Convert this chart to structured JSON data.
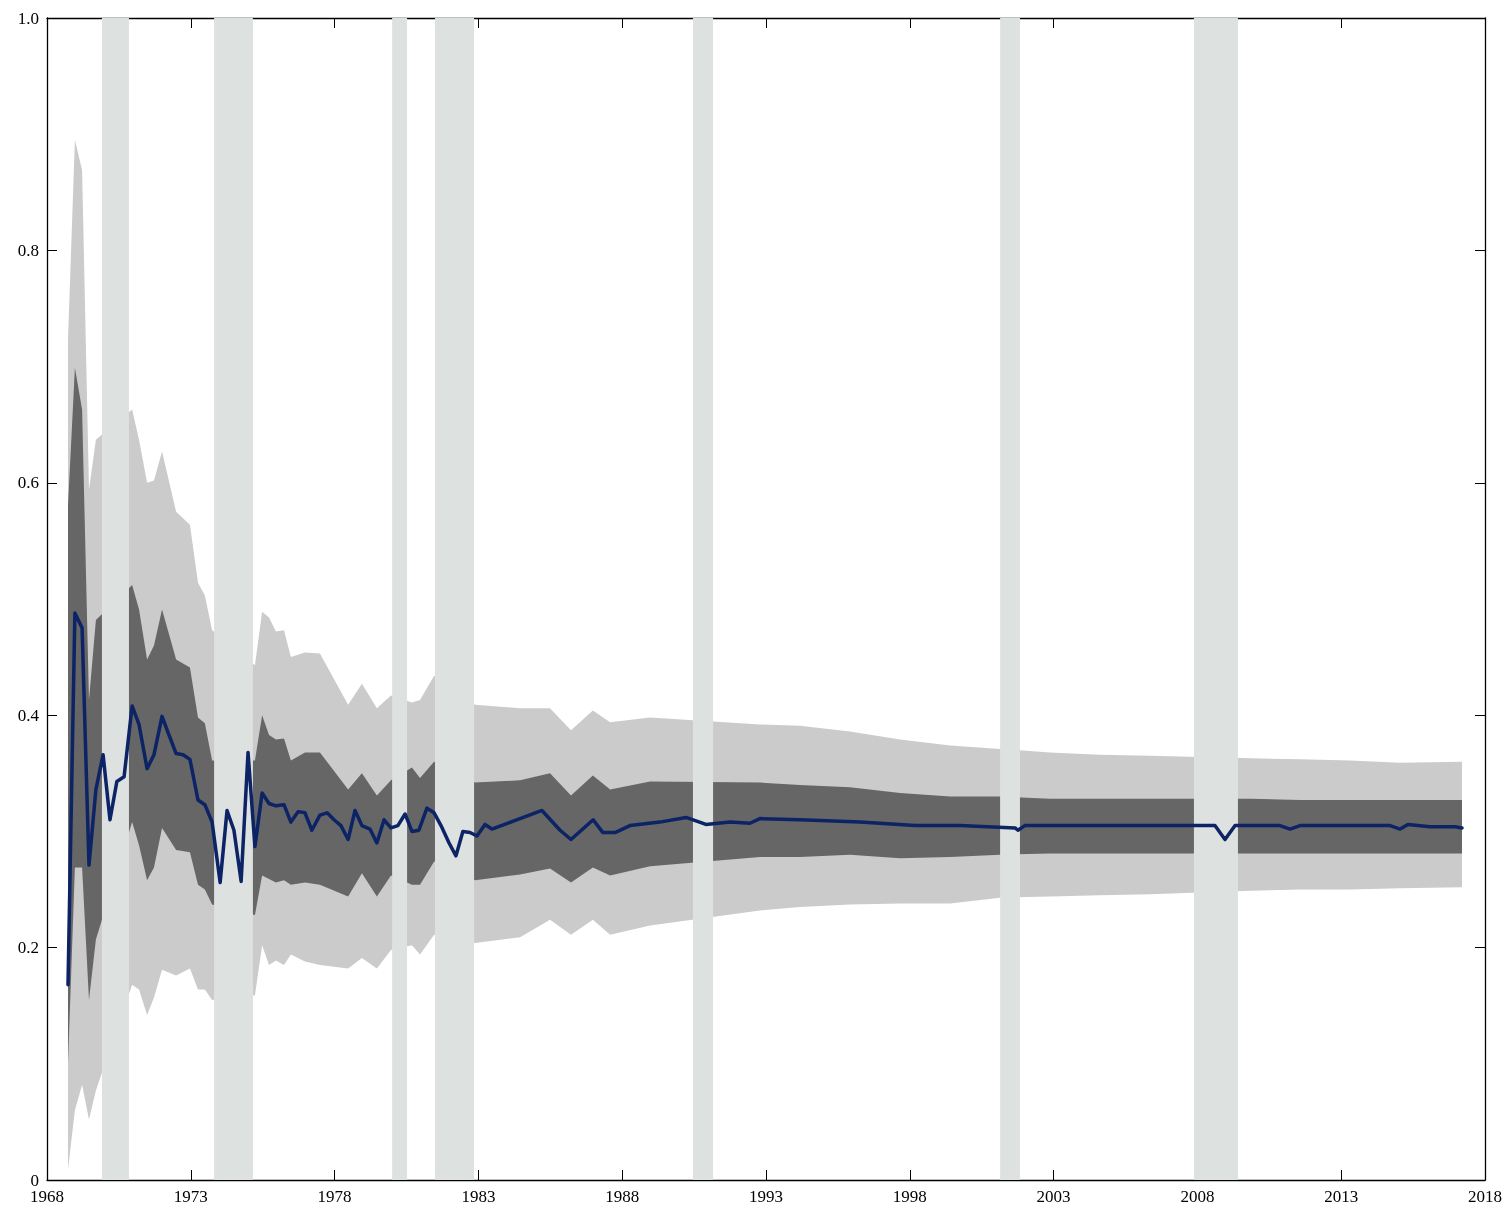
{
  "chart_data": {
    "type": "line",
    "xlim": [
      1968,
      2018
    ],
    "xticks": [
      1968,
      1973,
      1978,
      1983,
      1988,
      1993,
      1998,
      2003,
      2008,
      2013,
      2018
    ],
    "ylim": [
      0,
      1
    ],
    "yticks": [
      0,
      0.2,
      0.4,
      0.6,
      0.8,
      {
        "value": 1,
        "label": "1.0"
      }
    ],
    "grid": false,
    "marker": "none",
    "line_style": "solid",
    "bands": [
      {
        "axis": "x",
        "from": 1969.91,
        "to": 1970.85,
        "color": "#dde1e0"
      },
      {
        "axis": "x",
        "from": 1973.81,
        "to": 1975.16,
        "color": "#dde1e0"
      },
      {
        "axis": "x",
        "from": 1980.0,
        "to": 1980.52,
        "color": "#dde1e0"
      },
      {
        "axis": "x",
        "from": 1981.49,
        "to": 1982.85,
        "color": "#dde1e0"
      },
      {
        "axis": "x",
        "from": 1990.46,
        "to": 1991.16,
        "color": "#dde1e0"
      },
      {
        "axis": "x",
        "from": 2001.14,
        "to": 2001.83,
        "color": "#dde1e0"
      },
      {
        "axis": "x",
        "from": 2007.88,
        "to": 2009.41,
        "color": "#dde1e0"
      }
    ],
    "x": [
      1968.73,
      1968.97,
      1969.22,
      1969.46,
      1969.7,
      1969.95,
      1970.96,
      1971.2,
      1971.48,
      1971.72,
      1972.0,
      1972.49,
      1972.97,
      1973.25,
      1973.49,
      1973.74,
      1975.23,
      1975.48,
      1975.72,
      1975.96,
      1976.24,
      1976.48,
      1976.97,
      1977.49,
      1978.47,
      1978.95,
      1979.47,
      1979.96,
      1980.69,
      1980.97,
      1981.46,
      1982.88,
      1984.45,
      1985.49,
      1986.22,
      1986.98,
      1987.58,
      1988.97,
      1990.71,
      1992.79,
      1994.18,
      1995.92,
      1997.66,
      1999.4,
      2001.14,
      2002.87,
      2004.61,
      2006.35,
      2008.09,
      2009.83,
      2011.57,
      2013.31,
      2015.04,
      2017.2
    ],
    "series": [
      {
        "color": "#cbcbcb",
        "values": [
          null,
          null,
          null,
          null,
          null,
          null,
          null,
          null,
          null,
          null,
          null,
          null,
          null,
          null,
          null,
          null,
          null,
          null,
          null,
          null,
          null,
          null,
          null,
          null,
          null,
          null,
          null,
          null,
          null,
          null,
          null,
          null,
          null,
          null,
          null,
          null,
          null,
          null,
          null,
          null,
          null,
          null,
          null,
          null,
          null,
          null,
          null,
          null,
          null,
          null,
          null,
          null,
          null,
          null
        ],
        "lower": [
          0.009,
          0.06,
          0.082,
          0.052,
          0.077,
          null,
          0.168,
          0.164,
          0.142,
          0.157,
          0.181,
          0.176,
          0.182,
          0.164,
          0.164,
          0.155,
          0.159,
          0.202,
          0.185,
          0.189,
          0.185,
          0.194,
          0.188,
          0.185,
          0.182,
          0.191,
          0.182,
          0.198,
          0.202,
          0.194,
          0.211,
          0.204,
          0.209,
          0.224,
          0.211,
          0.224,
          0.211,
          0.219,
          null,
          0.232,
          0.235,
          0.237,
          0.238,
          0.238,
          0.243,
          0.244,
          0.245,
          0.246,
          null,
          0.249,
          0.25,
          0.25,
          0.251,
          0.252
        ],
        "upper": [
          0.723,
          0.895,
          0.869,
          0.594,
          0.637,
          null,
          0.663,
          0.637,
          0.6,
          0.602,
          0.627,
          0.575,
          0.564,
          0.514,
          0.503,
          0.473,
          0.443,
          0.489,
          0.484,
          0.472,
          0.473,
          0.45,
          0.454,
          0.453,
          0.409,
          0.427,
          0.406,
          0.417,
          0.411,
          0.413,
          0.434,
          0.409,
          0.406,
          0.406,
          0.387,
          0.404,
          0.394,
          0.398,
          null,
          0.392,
          0.391,
          0.386,
          0.379,
          0.374,
          0.371,
          0.368,
          0.366,
          0.365,
          null,
          0.363,
          0.362,
          0.361,
          0.359,
          0.36
        ]
      },
      {
        "color": "#666666",
        "values": [
          null,
          null,
          null,
          null,
          null,
          null,
          null,
          null,
          null,
          null,
          null,
          null,
          null,
          null,
          null,
          null,
          null,
          null,
          null,
          null,
          null,
          null,
          null,
          null,
          null,
          null,
          null,
          null,
          null,
          null,
          null,
          null,
          null,
          null,
          null,
          null,
          null,
          null,
          null,
          null,
          null,
          null,
          null,
          null,
          null,
          null,
          null,
          null,
          null,
          null,
          null,
          null,
          null,
          null
        ],
        "lower": [
          0.1,
          0.269,
          0.269,
          0.155,
          0.207,
          null,
          0.308,
          0.288,
          0.258,
          0.269,
          0.303,
          0.284,
          0.282,
          0.254,
          0.25,
          0.237,
          0.228,
          0.262,
          0.259,
          0.256,
          0.258,
          0.254,
          0.256,
          0.254,
          0.244,
          0.264,
          0.244,
          0.262,
          0.254,
          0.254,
          0.274,
          0.258,
          0.263,
          0.268,
          0.256,
          0.269,
          0.262,
          0.27,
          null,
          0.278,
          0.278,
          0.28,
          0.277,
          0.278,
          0.28,
          0.281,
          0.281,
          0.281,
          null,
          0.281,
          0.281,
          0.281,
          0.281,
          0.281
        ],
        "upper": [
          0.58,
          0.699,
          0.663,
          0.413,
          0.482,
          null,
          0.512,
          0.491,
          0.448,
          0.46,
          0.491,
          0.448,
          0.441,
          0.398,
          0.393,
          0.361,
          0.361,
          0.4,
          0.383,
          0.379,
          0.38,
          0.361,
          0.368,
          0.368,
          0.336,
          0.35,
          0.331,
          0.344,
          0.355,
          0.346,
          0.36,
          0.342,
          0.344,
          0.35,
          0.331,
          0.348,
          0.336,
          0.343,
          null,
          0.342,
          0.34,
          0.338,
          0.333,
          0.33,
          0.33,
          0.328,
          0.328,
          0.328,
          null,
          0.328,
          0.327,
          0.327,
          0.327,
          0.327
        ]
      },
      {
        "type": "line",
        "color": "#0c2366",
        "x": [
          1968.73,
          1968.97,
          1969.22,
          1969.46,
          1969.7,
          1969.95,
          1970.19,
          1970.43,
          1970.68,
          1970.96,
          1971.2,
          1971.48,
          1971.72,
          1972.0,
          1972.24,
          1972.49,
          1972.73,
          1972.97,
          1973.25,
          1973.49,
          1973.74,
          1974.02,
          1974.26,
          1974.5,
          1974.75,
          1974.99,
          1975.23,
          1975.48,
          1975.72,
          1975.96,
          1976.24,
          1976.48,
          1976.73,
          1976.97,
          1977.21,
          1977.49,
          1977.74,
          1977.98,
          1978.22,
          1978.47,
          1978.71,
          1978.95,
          1979.23,
          1979.47,
          1979.72,
          1979.96,
          1980.2,
          1980.45,
          1980.69,
          1980.93,
          1981.21,
          1981.46,
          1981.7,
          1981.98,
          1982.22,
          1982.46,
          1982.71,
          1982.95,
          1983.23,
          1983.47,
          1985.21,
          1985.84,
          1986.22,
          1986.99,
          1987.33,
          1987.75,
          1988.27,
          1989.31,
          1990.22,
          1990.91,
          1991.75,
          1992.44,
          1992.79,
          1994.18,
          1996.27,
          1998.18,
          1999.74,
          2001.66,
          2001.76,
          2002.0,
          2004.61,
          2007.4,
          2008.61,
          2008.96,
          2009.31,
          2010.87,
          2011.22,
          2011.57,
          2014.7,
          2015.05,
          2015.32,
          2016.09,
          2016.96,
          2017.2
        ],
        "values": [
          0.168,
          0.488,
          0.475,
          0.271,
          0.336,
          0.366,
          0.31,
          0.343,
          0.347,
          0.408,
          0.392,
          0.354,
          0.366,
          0.399,
          0.383,
          0.367,
          0.366,
          0.362,
          0.327,
          0.323,
          0.308,
          0.256,
          0.318,
          0.301,
          0.257,
          0.368,
          0.287,
          0.333,
          0.324,
          0.322,
          0.323,
          0.308,
          0.317,
          0.316,
          0.301,
          0.314,
          0.316,
          0.31,
          0.305,
          0.293,
          0.318,
          0.305,
          0.302,
          0.29,
          0.31,
          0.303,
          0.305,
          0.315,
          0.3,
          0.301,
          0.32,
          0.316,
          0.305,
          0.29,
          0.279,
          0.3,
          0.299,
          0.296,
          0.306,
          0.302,
          0.318,
          0.301,
          0.293,
          0.31,
          0.299,
          0.299,
          0.305,
          0.308,
          0.312,
          0.306,
          0.308,
          0.307,
          0.311,
          0.31,
          0.308,
          0.305,
          0.305,
          0.303,
          0.301,
          0.305,
          0.305,
          0.305,
          0.305,
          0.293,
          0.305,
          0.305,
          0.302,
          0.305,
          0.305,
          0.302,
          0.306,
          0.304,
          0.304,
          0.303
        ]
      }
    ]
  }
}
